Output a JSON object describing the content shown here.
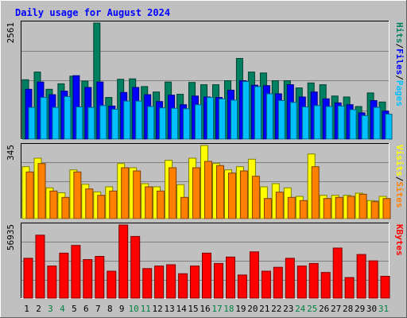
{
  "chart_data": {
    "type": "bar",
    "title": "Daily usage for August 2024",
    "categories": [
      "1",
      "2",
      "3",
      "4",
      "5",
      "6",
      "7",
      "8",
      "9",
      "10",
      "11",
      "12",
      "13",
      "14",
      "15",
      "16",
      "17",
      "18",
      "19",
      "20",
      "21",
      "22",
      "23",
      "24",
      "25",
      "26",
      "27",
      "28",
      "29",
      "30",
      "31"
    ],
    "weekend_days": [
      "3",
      "4",
      "10",
      "11",
      "17",
      "18",
      "24",
      "25",
      "31"
    ],
    "panels": [
      {
        "id": "pages-files-hits",
        "max_label": "2561",
        "ymax": 2561,
        "label_parts": [
          "Pages",
          "/",
          "Files",
          "/",
          "Hits"
        ],
        "series": [
          {
            "name": "Hits",
            "color": "#008060",
            "values": [
              1310,
              1480,
              1100,
              1220,
              1390,
              1280,
              2561,
              920,
              1320,
              1330,
              1160,
              1040,
              1260,
              990,
              1250,
              1200,
              1200,
              1290,
              1780,
              1480,
              1460,
              1290,
              1290,
              1130,
              1240,
              1200,
              950,
              930,
              720,
              1020,
              820
            ]
          },
          {
            "name": "Files",
            "color": "#0000ff",
            "values": [
              1100,
              1260,
              980,
              1060,
              1400,
              1140,
              1260,
              730,
              1030,
              1140,
              980,
              830,
              970,
              760,
              950,
              930,
              920,
              1080,
              1290,
              1190,
              1180,
              1000,
              1200,
              930,
              1040,
              890,
              800,
              760,
              580,
              850,
              620
            ]
          },
          {
            "name": "Pages",
            "color": "#00c0ff",
            "values": [
              700,
              920,
              700,
              940,
              710,
              700,
              740,
              660,
              840,
              840,
              720,
              690,
              680,
              670,
              760,
              920,
              890,
              860,
              1270,
              1160,
              1000,
              850,
              810,
              710,
              740,
              720,
              730,
              650,
              520,
              700,
              550
            ]
          }
        ]
      },
      {
        "id": "sites-visits",
        "max_label": "345",
        "ymax": 345,
        "label_parts": [
          "Sites",
          "/",
          "Visits"
        ],
        "series": [
          {
            "name": "Visits",
            "color": "#ffff00",
            "values": [
              245,
              285,
              145,
              122,
              230,
              162,
              126,
              150,
              260,
              240,
              165,
              150,
              275,
              160,
              285,
              345,
              260,
              230,
              245,
              280,
              150,
              165,
              145,
              105,
              305,
              110,
              110,
              110,
              120,
              85,
              105
            ]
          },
          {
            "name": "Sites",
            "color": "#ff8000",
            "values": [
              220,
              260,
              130,
              100,
              220,
              140,
              110,
              130,
              240,
              225,
              150,
              130,
              240,
              100,
              240,
              270,
              250,
              215,
              225,
              200,
              95,
              125,
              100,
              85,
              245,
              95,
              100,
              105,
              115,
              80,
              95
            ]
          }
        ]
      },
      {
        "id": "kbytes",
        "max_label": "56935",
        "ymax": 56935,
        "label_parts": [
          "KBytes"
        ],
        "series": [
          {
            "name": "KBytes",
            "color": "#ff0000",
            "values": [
              31000,
              49000,
              25000,
              35000,
              41000,
              30000,
              32500,
              21000,
              56935,
              48000,
              23000,
              25000,
              26000,
              19000,
              25000,
              35000,
              27000,
              32000,
              18000,
              36000,
              21000,
              24000,
              31000,
              25000,
              27000,
              20000,
              39000,
              16000,
              34000,
              29000,
              17000
            ]
          }
        ]
      }
    ]
  }
}
